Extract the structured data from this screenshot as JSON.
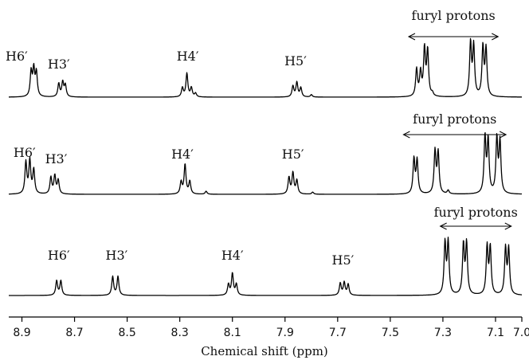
{
  "chart_data": {
    "type": "line",
    "xlabel": "Chemical shift (ppm)",
    "xlim": [
      8.95,
      7.0
    ],
    "x_reversed": true,
    "x_ticks": [
      "8.9",
      "8.7",
      "8.5",
      "8.3",
      "8.1",
      "7.9",
      "7.7",
      "7.5",
      "7.3",
      "7.1",
      "7.0"
    ],
    "grid": false,
    "series": [
      {
        "peaks": [
          {
            "ppm": 8.865,
            "h": 0.82
          },
          {
            "ppm": 8.855,
            "h": 0.88
          },
          {
            "ppm": 8.845,
            "h": 0.78
          },
          {
            "ppm": 8.76,
            "h": 0.44
          },
          {
            "ppm": 8.745,
            "h": 0.48
          },
          {
            "ppm": 8.735,
            "h": 0.38
          },
          {
            "ppm": 8.29,
            "h": 0.3
          },
          {
            "ppm": 8.273,
            "h": 0.78
          },
          {
            "ppm": 8.256,
            "h": 0.3
          },
          {
            "ppm": 8.24,
            "h": 0.12
          },
          {
            "ppm": 7.87,
            "h": 0.36
          },
          {
            "ppm": 7.855,
            "h": 0.48
          },
          {
            "ppm": 7.84,
            "h": 0.3
          },
          {
            "ppm": 7.8,
            "h": 0.08
          },
          {
            "ppm": 7.4,
            "h": 0.9
          },
          {
            "ppm": 7.385,
            "h": 0.78
          },
          {
            "ppm": 7.37,
            "h": 1.55
          },
          {
            "ppm": 7.358,
            "h": 1.5
          },
          {
            "ppm": 7.34,
            "h": 0.1
          },
          {
            "ppm": 7.195,
            "h": 1.75
          },
          {
            "ppm": 7.183,
            "h": 1.65
          },
          {
            "ppm": 7.148,
            "h": 1.62
          },
          {
            "ppm": 7.136,
            "h": 1.55
          }
        ],
        "labels": [
          {
            "text": "H6′",
            "ppm": 8.92,
            "dy": 0
          },
          {
            "text": "H3′",
            "ppm": 8.76,
            "dy": 10
          },
          {
            "text": "H4′",
            "ppm": 8.27,
            "dy": 0
          },
          {
            "text": "H5′",
            "ppm": 7.86,
            "dy": 6
          }
        ],
        "group_label": "furyl protons",
        "group_range": [
          7.43,
          7.09
        ]
      },
      {
        "peaks": [
          {
            "ppm": 8.885,
            "h": 1.05
          },
          {
            "ppm": 8.87,
            "h": 1.1
          },
          {
            "ppm": 8.855,
            "h": 0.8
          },
          {
            "ppm": 8.79,
            "h": 0.55
          },
          {
            "ppm": 8.775,
            "h": 0.6
          },
          {
            "ppm": 8.762,
            "h": 0.45
          },
          {
            "ppm": 8.295,
            "h": 0.4
          },
          {
            "ppm": 8.28,
            "h": 0.98
          },
          {
            "ppm": 8.262,
            "h": 0.42
          },
          {
            "ppm": 8.2,
            "h": 0.1
          },
          {
            "ppm": 7.885,
            "h": 0.55
          },
          {
            "ppm": 7.87,
            "h": 0.7
          },
          {
            "ppm": 7.855,
            "h": 0.45
          },
          {
            "ppm": 7.795,
            "h": 0.07
          },
          {
            "ppm": 7.41,
            "h": 1.15
          },
          {
            "ppm": 7.398,
            "h": 1.1
          },
          {
            "ppm": 7.33,
            "h": 1.4
          },
          {
            "ppm": 7.318,
            "h": 1.35
          },
          {
            "ppm": 7.28,
            "h": 0.12
          },
          {
            "ppm": 7.14,
            "h": 1.85
          },
          {
            "ppm": 7.128,
            "h": 1.75
          },
          {
            "ppm": 7.095,
            "h": 1.8
          },
          {
            "ppm": 7.083,
            "h": 1.7
          }
        ],
        "labels": [
          {
            "text": "H6′",
            "ppm": 8.89,
            "dy": 0
          },
          {
            "text": "H3′",
            "ppm": 8.77,
            "dy": 8
          },
          {
            "text": "H4′",
            "ppm": 8.29,
            "dy": 2
          },
          {
            "text": "H5′",
            "ppm": 7.87,
            "dy": 2
          }
        ],
        "group_label": "furyl protons",
        "group_range": [
          7.45,
          7.06
        ]
      },
      {
        "peaks": [
          {
            "ppm": 8.768,
            "h": 0.48
          },
          {
            "ppm": 8.752,
            "h": 0.48
          },
          {
            "ppm": 8.555,
            "h": 0.62
          },
          {
            "ppm": 8.535,
            "h": 0.62
          },
          {
            "ppm": 8.115,
            "h": 0.36
          },
          {
            "ppm": 8.1,
            "h": 0.72
          },
          {
            "ppm": 8.085,
            "h": 0.36
          },
          {
            "ppm": 7.69,
            "h": 0.4
          },
          {
            "ppm": 7.675,
            "h": 0.42
          },
          {
            "ppm": 7.66,
            "h": 0.36
          },
          {
            "ppm": 7.292,
            "h": 1.7
          },
          {
            "ppm": 7.28,
            "h": 1.72
          },
          {
            "ppm": 7.222,
            "h": 1.65
          },
          {
            "ppm": 7.21,
            "h": 1.68
          },
          {
            "ppm": 7.132,
            "h": 1.58
          },
          {
            "ppm": 7.12,
            "h": 1.55
          },
          {
            "ppm": 7.062,
            "h": 1.52
          },
          {
            "ppm": 7.05,
            "h": 1.5
          }
        ],
        "labels": [
          {
            "text": "H6′",
            "ppm": 8.76,
            "dy": 0
          },
          {
            "text": "H3′",
            "ppm": 8.54,
            "dy": 0
          },
          {
            "text": "H4′",
            "ppm": 8.1,
            "dy": 0
          },
          {
            "text": "H5′",
            "ppm": 7.68,
            "dy": 6
          }
        ],
        "group_label": "furyl protons",
        "group_range": [
          7.31,
          7.04
        ]
      }
    ]
  }
}
